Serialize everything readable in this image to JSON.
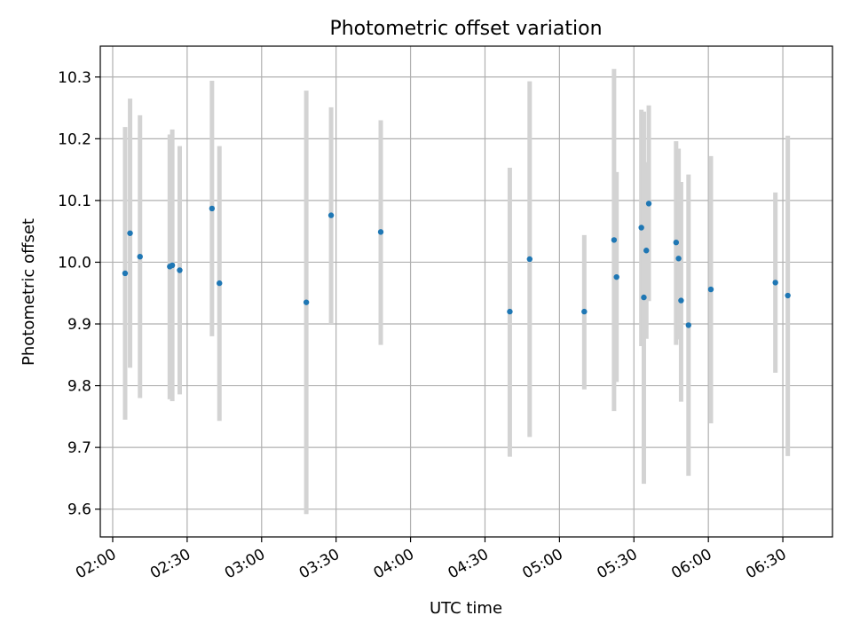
{
  "chart_data": {
    "type": "scatter",
    "title": "Photometric offset variation",
    "xlabel": "UTC time",
    "ylabel": "Photometric offset",
    "x_ticks": [
      "02:00",
      "02:30",
      "03:00",
      "03:30",
      "04:00",
      "04:30",
      "05:00",
      "05:30",
      "06:00",
      "06:30"
    ],
    "xlim": [
      "01:55",
      "06:50"
    ],
    "y_ticks": [
      "9.6",
      "9.7",
      "9.8",
      "9.9",
      "10.0",
      "10.1",
      "10.2",
      "10.3"
    ],
    "ylim": [
      9.555,
      10.35
    ],
    "grid": true,
    "marker_color": "#1f77b4",
    "errorbar_color": "#d3d3d3",
    "points": [
      {
        "x": "02:05",
        "y": 9.982,
        "low": 9.745,
        "high": 10.219
      },
      {
        "x": "02:07",
        "y": 10.047,
        "low": 9.829,
        "high": 10.265
      },
      {
        "x": "02:11",
        "y": 10.009,
        "low": 9.78,
        "high": 10.238
      },
      {
        "x": "02:23",
        "y": 9.993,
        "low": 9.778,
        "high": 10.207
      },
      {
        "x": "02:24",
        "y": 9.995,
        "low": 9.775,
        "high": 10.215
      },
      {
        "x": "02:27",
        "y": 9.987,
        "low": 9.786,
        "high": 10.188
      },
      {
        "x": "02:40",
        "y": 10.087,
        "low": 9.88,
        "high": 10.294
      },
      {
        "x": "02:43",
        "y": 9.966,
        "low": 9.743,
        "high": 10.188
      },
      {
        "x": "03:18",
        "y": 9.935,
        "low": 9.592,
        "high": 10.278
      },
      {
        "x": "03:28",
        "y": 10.076,
        "low": 9.9,
        "high": 10.251
      },
      {
        "x": "03:48",
        "y": 10.049,
        "low": 9.866,
        "high": 10.23
      },
      {
        "x": "04:40",
        "y": 9.92,
        "low": 9.685,
        "high": 10.153
      },
      {
        "x": "04:48",
        "y": 10.005,
        "low": 9.717,
        "high": 10.293
      },
      {
        "x": "05:10",
        "y": 9.92,
        "low": 9.794,
        "high": 10.044
      },
      {
        "x": "05:22",
        "y": 10.036,
        "low": 9.759,
        "high": 10.313
      },
      {
        "x": "05:23",
        "y": 9.976,
        "low": 9.806,
        "high": 10.146
      },
      {
        "x": "05:33",
        "y": 10.056,
        "low": 9.864,
        "high": 10.247
      },
      {
        "x": "05:34",
        "y": 9.943,
        "low": 9.641,
        "high": 10.244
      },
      {
        "x": "05:35",
        "y": 10.019,
        "low": 9.876,
        "high": 10.162
      },
      {
        "x": "05:36",
        "y": 10.095,
        "low": 9.937,
        "high": 10.254
      },
      {
        "x": "05:47",
        "y": 10.032,
        "low": 9.866,
        "high": 10.196
      },
      {
        "x": "05:48",
        "y": 10.006,
        "low": 9.875,
        "high": 10.184
      },
      {
        "x": "05:49",
        "y": 9.938,
        "low": 9.774,
        "high": 10.13
      },
      {
        "x": "05:52",
        "y": 9.898,
        "low": 9.654,
        "high": 10.142
      },
      {
        "x": "06:01",
        "y": 9.956,
        "low": 9.739,
        "high": 10.172
      },
      {
        "x": "06:27",
        "y": 9.967,
        "low": 9.821,
        "high": 10.113
      },
      {
        "x": "06:32",
        "y": 9.946,
        "low": 9.686,
        "high": 10.205
      }
    ]
  }
}
